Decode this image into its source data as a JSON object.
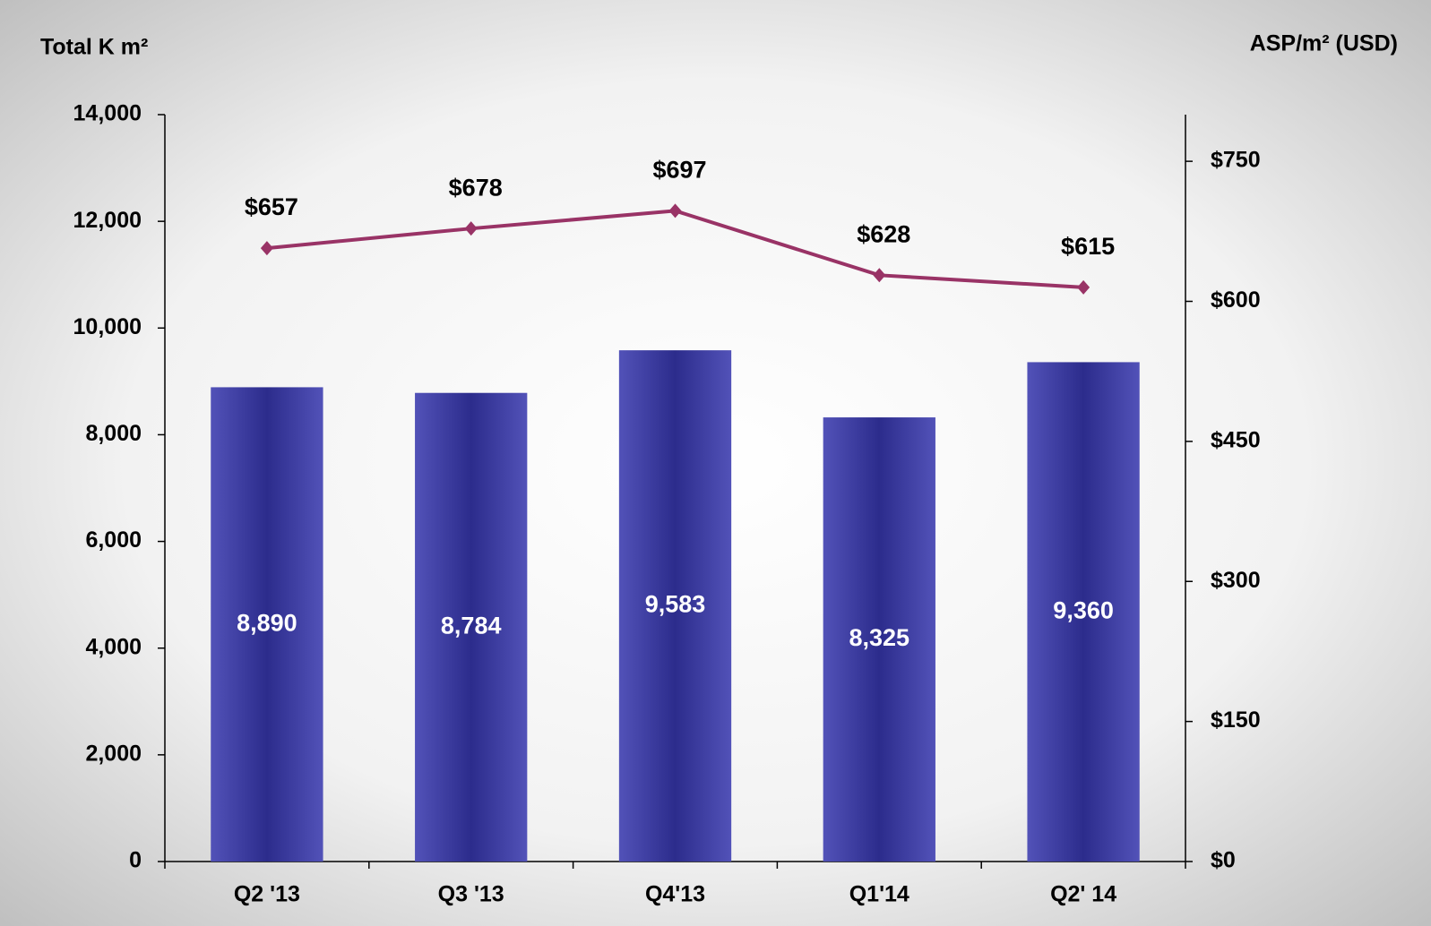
{
  "chart_data": {
    "type": "bar",
    "y_axis_title": "Total K m²",
    "y2_axis_title": "ASP/m² (USD)",
    "categories": [
      "Q2 '13",
      "Q3 '13",
      "Q4'13",
      "Q1'14",
      "Q2' 14"
    ],
    "series": [
      {
        "name": "Total K m²",
        "type": "bar",
        "color": "#3a3aa0",
        "values": [
          8890,
          8784,
          9583,
          8325,
          9360
        ],
        "value_labels": [
          "8,890",
          "8,784",
          "9,583",
          "8,325",
          "9,360"
        ]
      },
      {
        "name": "ASP/m² (USD)",
        "type": "line",
        "axis": "y2",
        "color": "#993366",
        "values": [
          657,
          678,
          697,
          628,
          615
        ],
        "value_labels": [
          "$657",
          "$678",
          "$697",
          "$628",
          "$615"
        ]
      }
    ],
    "ylim": [
      0,
      14000
    ],
    "yticks": [
      0,
      {
        "value": 2000,
        "label": "2,000"
      },
      {
        "value": 4000,
        "label": "4,000"
      },
      {
        "value": 6000,
        "label": "6,000"
      },
      {
        "value": 8000,
        "label": "8,000"
      },
      {
        "value": 10000,
        "label": "10,000"
      },
      {
        "value": 12000,
        "label": "12,000"
      },
      {
        "value": 14000,
        "label": "14,000"
      }
    ],
    "y2lim": [
      0,
      800
    ],
    "y2ticks": [
      {
        "value": 0,
        "label": "$0"
      },
      {
        "value": 150,
        "label": "$150"
      },
      {
        "value": 300,
        "label": "$300"
      },
      {
        "value": 450,
        "label": "$450"
      },
      {
        "value": 600,
        "label": "$600"
      },
      {
        "value": 750,
        "label": "$750"
      }
    ],
    "grid": false
  }
}
